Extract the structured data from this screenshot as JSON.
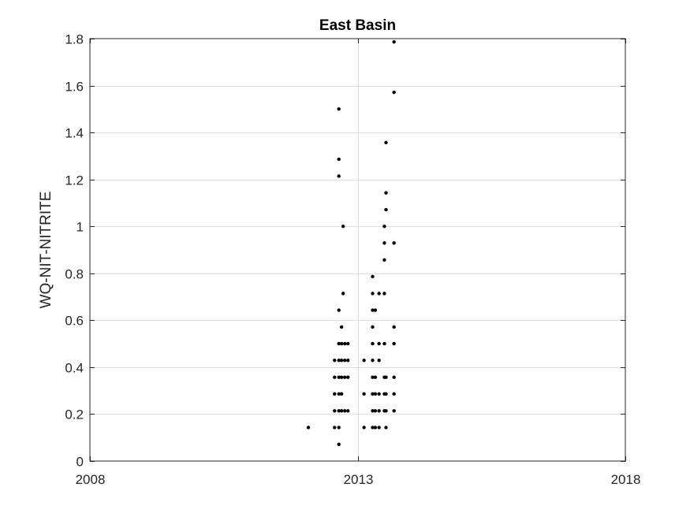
{
  "chart_data": {
    "type": "scatter",
    "title": "East Basin",
    "xlabel": "",
    "ylabel": "WQ-NIT-NITRITE",
    "xlim": [
      2008,
      2018
    ],
    "ylim": [
      0,
      1.8
    ],
    "x_ticks": [
      2008,
      2013,
      2018
    ],
    "x_tick_labels": [
      "2008",
      "2013",
      "2018"
    ],
    "y_ticks": [
      0,
      0.2,
      0.4,
      0.6,
      0.8,
      1.0,
      1.2,
      1.4,
      1.6,
      1.8
    ],
    "y_tick_labels": [
      "0",
      "0.2",
      "0.4",
      "0.6",
      "0.8",
      "1",
      "1.2",
      "1.4",
      "1.6",
      "1.8"
    ],
    "grid": true,
    "marker_color": "#000000",
    "series": [
      {
        "points": [
          [
            12.08,
            0.143
          ],
          [
            12.57,
            0.429
          ],
          [
            12.57,
            0.357
          ],
          [
            12.57,
            0.286
          ],
          [
            12.57,
            0.214
          ],
          [
            12.57,
            0.143
          ],
          [
            12.65,
            1.5
          ],
          [
            12.65,
            1.286
          ],
          [
            12.65,
            1.214
          ],
          [
            12.65,
            0.643
          ],
          [
            12.65,
            0.5
          ],
          [
            12.65,
            0.429
          ],
          [
            12.65,
            0.357
          ],
          [
            12.65,
            0.286
          ],
          [
            12.65,
            0.214
          ],
          [
            12.65,
            0.143
          ],
          [
            12.65,
            0.071
          ],
          [
            12.7,
            0.571
          ],
          [
            12.7,
            0.5
          ],
          [
            12.7,
            0.429
          ],
          [
            12.7,
            0.357
          ],
          [
            12.7,
            0.286
          ],
          [
            12.7,
            0.214
          ],
          [
            12.73,
            1.0
          ],
          [
            12.73,
            0.714
          ],
          [
            12.76,
            0.5
          ],
          [
            12.76,
            0.429
          ],
          [
            12.76,
            0.357
          ],
          [
            12.76,
            0.214
          ],
          [
            12.82,
            0.5
          ],
          [
            12.82,
            0.429
          ],
          [
            12.82,
            0.357
          ],
          [
            12.82,
            0.214
          ],
          [
            13.12,
            0.429
          ],
          [
            13.12,
            0.286
          ],
          [
            13.12,
            0.143
          ],
          [
            13.28,
            0.786
          ],
          [
            13.28,
            0.714
          ],
          [
            13.28,
            0.643
          ],
          [
            13.28,
            0.571
          ],
          [
            13.28,
            0.5
          ],
          [
            13.28,
            0.429
          ],
          [
            13.28,
            0.357
          ],
          [
            13.28,
            0.286
          ],
          [
            13.28,
            0.214
          ],
          [
            13.28,
            0.143
          ],
          [
            13.33,
            0.643
          ],
          [
            13.33,
            0.357
          ],
          [
            13.33,
            0.286
          ],
          [
            13.33,
            0.214
          ],
          [
            13.33,
            0.143
          ],
          [
            13.4,
            0.714
          ],
          [
            13.4,
            0.5
          ],
          [
            13.4,
            0.429
          ],
          [
            13.4,
            0.286
          ],
          [
            13.4,
            0.214
          ],
          [
            13.4,
            0.143
          ],
          [
            13.5,
            1.0
          ],
          [
            13.5,
            0.929
          ],
          [
            13.5,
            0.857
          ],
          [
            13.5,
            0.714
          ],
          [
            13.5,
            0.5
          ],
          [
            13.5,
            0.357
          ],
          [
            13.5,
            0.286
          ],
          [
            13.5,
            0.214
          ],
          [
            13.53,
            1.357
          ],
          [
            13.53,
            1.143
          ],
          [
            13.53,
            1.071
          ],
          [
            13.53,
            0.357
          ],
          [
            13.53,
            0.286
          ],
          [
            13.53,
            0.214
          ],
          [
            13.53,
            0.143
          ],
          [
            13.68,
            1.786
          ],
          [
            13.68,
            1.571
          ],
          [
            13.68,
            0.929
          ],
          [
            13.68,
            0.571
          ],
          [
            13.68,
            0.5
          ],
          [
            13.68,
            0.357
          ],
          [
            13.68,
            0.286
          ],
          [
            13.68,
            0.214
          ]
        ]
      }
    ]
  }
}
